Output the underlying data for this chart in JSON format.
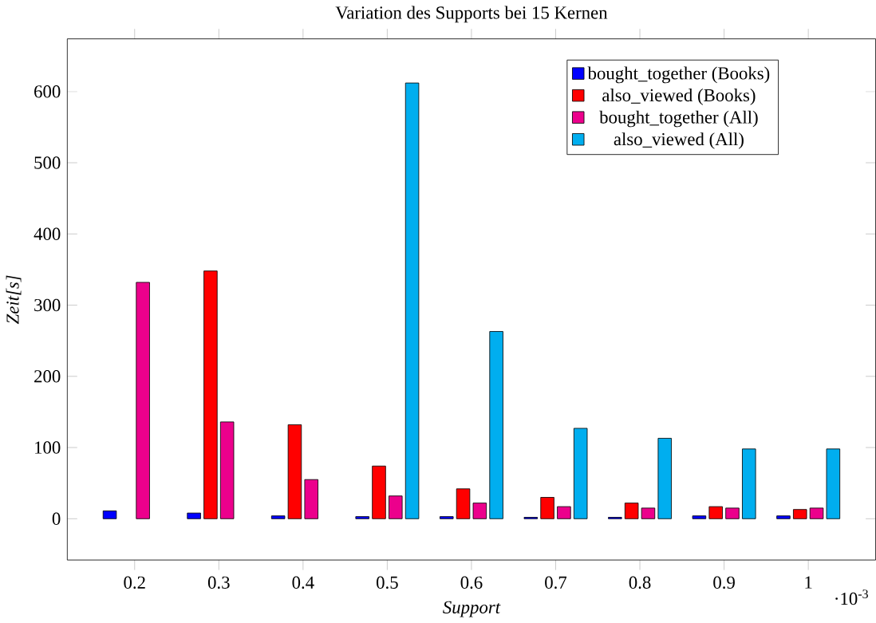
{
  "chart_data": {
    "type": "bar",
    "title": "Variation des Supports bei 15 Kernen",
    "xlabel": "Support",
    "ylabel": "Zeit[s]",
    "x": [
      0.2,
      0.3,
      0.4,
      0.5,
      0.6,
      0.7,
      0.8,
      0.9,
      1
    ],
    "series": [
      {
        "name": "bought_together (Books)",
        "color": "#0000ff",
        "values": [
          11,
          8,
          4,
          3,
          3,
          2,
          2,
          4,
          4
        ]
      },
      {
        "name": "also_viewed (Books)",
        "color": "#ff0000",
        "values": [
          null,
          348,
          132,
          74,
          42,
          30,
          22,
          17,
          13
        ]
      },
      {
        "name": "bought_together (All)",
        "color": "#ec008c",
        "values": [
          332,
          136,
          55,
          32,
          22,
          17,
          15,
          15,
          15
        ]
      },
      {
        "name": "also_viewed (All)",
        "color": "#00aeef",
        "values": [
          null,
          null,
          null,
          612,
          263,
          127,
          113,
          98,
          98
        ]
      }
    ],
    "xlim": [
      0.12,
      1.08
    ],
    "ylim": [
      -58,
      674
    ],
    "xticks": [
      0.2,
      0.3,
      0.4,
      0.5,
      0.6,
      0.7,
      0.8,
      0.9,
      1
    ],
    "yticks": [
      0,
      100,
      200,
      300,
      400,
      500,
      600
    ],
    "annotations": [
      "·10$^{-3}$"
    ],
    "legend": "top right",
    "grid": false
  }
}
